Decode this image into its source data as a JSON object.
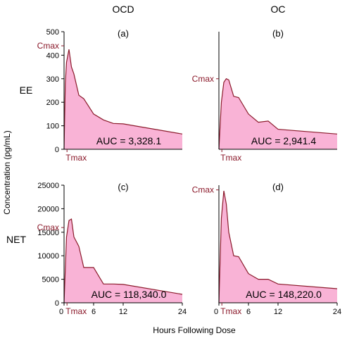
{
  "column_headers": [
    "OCD",
    "OC"
  ],
  "row_labels": [
    "EE",
    "NET"
  ],
  "y_axis_label": "Concentration (pg/mL)",
  "x_axis_label": "Hours Following Dose",
  "marker_labels": {
    "cmax": "Cmax",
    "tmax": "Tmax"
  },
  "colors": {
    "fill": "#f9b3d6",
    "line": "#8b1a2b"
  },
  "chart_data": [
    {
      "type": "area",
      "panel": "(a)",
      "column": "OCD",
      "row": "EE",
      "x": [
        0,
        0.25,
        0.5,
        1,
        1.5,
        2,
        3,
        4,
        6,
        8,
        10,
        12,
        24
      ],
      "y": [
        0,
        280,
        370,
        425,
        350,
        320,
        230,
        215,
        150,
        125,
        110,
        108,
        65
      ],
      "xlim": [
        0,
        24
      ],
      "ylim": [
        0,
        500
      ],
      "yticks": [
        0,
        100,
        200,
        300,
        400,
        500
      ],
      "auc_label": "AUC = 3,328.1",
      "cmax_y": 440,
      "tmax_x": 0.6,
      "show_x_ticks": false,
      "show_x_tmax": true
    },
    {
      "type": "area",
      "panel": "(b)",
      "column": "OC",
      "row": "EE",
      "x": [
        0,
        0.5,
        1,
        1.5,
        2,
        3,
        4,
        6,
        8,
        10,
        12,
        24
      ],
      "y": [
        0,
        200,
        285,
        300,
        295,
        225,
        220,
        150,
        115,
        120,
        85,
        65
      ],
      "xlim": [
        0,
        24
      ],
      "ylim": [
        0,
        500
      ],
      "yticks": [],
      "auc_label": "AUC = 2,941.4",
      "cmax_y": 300,
      "tmax_x": 0.6,
      "show_x_ticks": false,
      "show_x_tmax": true
    },
    {
      "type": "area",
      "panel": "(c)",
      "column": "OCD",
      "row": "NET",
      "x": [
        0,
        0.5,
        1,
        1.5,
        2,
        3,
        4,
        6,
        8,
        10,
        12,
        24
      ],
      "y": [
        0,
        14000,
        17500,
        17800,
        14000,
        12000,
        7500,
        7500,
        4000,
        4000,
        3900,
        1800
      ],
      "xlim": [
        0,
        24
      ],
      "ylim": [
        0,
        25000
      ],
      "yticks": [
        0,
        5000,
        10000,
        15000,
        20000,
        25000
      ],
      "auc_label": "AUC = 118,340.0",
      "cmax_y": 16000,
      "tmax_x": 0.6,
      "show_x_ticks": true,
      "show_x_tmax": true,
      "xticks": [
        0,
        6,
        12,
        24
      ]
    },
    {
      "type": "area",
      "panel": "(d)",
      "column": "OC",
      "row": "NET",
      "x": [
        0,
        0.5,
        1,
        1.5,
        2,
        3,
        4,
        6,
        8,
        10,
        12,
        24
      ],
      "y": [
        0,
        18000,
        23800,
        21000,
        15000,
        10000,
        9800,
        6200,
        5000,
        5000,
        4000,
        3000
      ],
      "xlim": [
        0,
        24
      ],
      "ylim": [
        0,
        25000
      ],
      "yticks": [],
      "auc_label": "AUC = 148,220.0",
      "cmax_y": 24000,
      "tmax_x": 0.6,
      "show_x_ticks": true,
      "show_x_tmax": true,
      "xticks": [
        0,
        6,
        12,
        24
      ]
    }
  ]
}
